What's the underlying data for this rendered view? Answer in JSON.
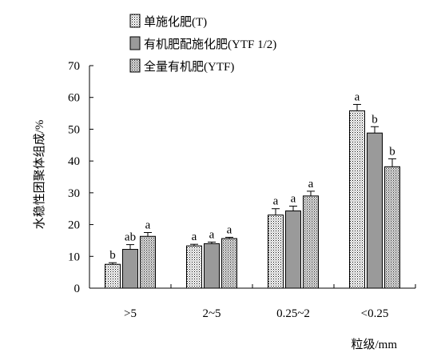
{
  "chart_data": {
    "type": "bar",
    "title": "",
    "xlabel": "粒级/mm",
    "ylabel": "水稳性团聚体组成/%",
    "ylim": [
      0,
      70
    ],
    "yticks": [
      0,
      10,
      20,
      30,
      40,
      50,
      60,
      70
    ],
    "grid": false,
    "legend_position": "top-center",
    "categories": [
      ">5",
      "2~5",
      "0.25~2",
      "<0.25"
    ],
    "series": [
      {
        "name": "单施化肥(T)",
        "pattern": "dotted",
        "color": "#ffffff",
        "values": [
          7.5,
          13.3,
          23.0,
          55.8
        ],
        "errors": [
          0.5,
          0.5,
          2.0,
          2.0
        ],
        "labels": [
          "b",
          "a",
          "a",
          "a"
        ]
      },
      {
        "name": "有机肥配施化肥(YTF 1/2)",
        "pattern": "solid",
        "color": "#999999",
        "values": [
          12.2,
          14.0,
          24.3,
          48.8
        ],
        "errors": [
          1.5,
          0.5,
          1.5,
          2.0
        ],
        "labels": [
          "ab",
          "a",
          "a",
          "b"
        ]
      },
      {
        "name": "全量有机肥(YTF)",
        "pattern": "crosshatch",
        "color": "#d8d8d8",
        "values": [
          16.3,
          15.6,
          29.0,
          38.2
        ],
        "errors": [
          1.2,
          0.4,
          1.5,
          2.5
        ],
        "labels": [
          "a",
          "a",
          "a",
          "b"
        ]
      }
    ]
  }
}
